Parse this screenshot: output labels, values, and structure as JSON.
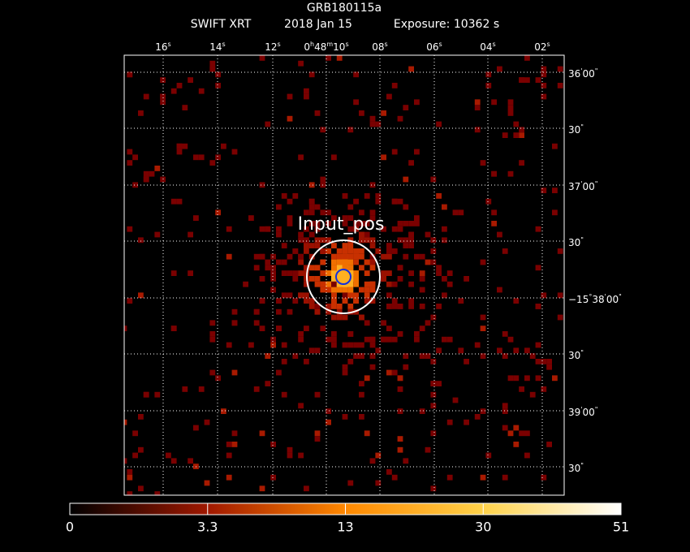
{
  "header": {
    "title": "GRB180115a",
    "instrument": "SWIFT XRT",
    "date": "2018 Jan 15",
    "exposure": "Exposure: 10362 s"
  },
  "ra_labels": [
    [
      "16",
      "s"
    ],
    [
      "14",
      "s"
    ],
    [
      "12",
      "s"
    ],
    [
      "0",
      "h",
      "48",
      "m",
      "10",
      "s"
    ],
    [
      "08",
      "s"
    ],
    [
      "06",
      "s"
    ],
    [
      "04",
      "s"
    ],
    [
      "02",
      "s"
    ]
  ],
  "dec_labels": [
    [
      "36",
      "'",
      "00",
      "\""
    ],
    [
      "30",
      "\""
    ],
    [
      "37",
      "'",
      "00",
      "\""
    ],
    [
      "30",
      "\""
    ],
    [
      "−15",
      "°",
      "38",
      "'",
      "00",
      "\""
    ],
    [
      "30",
      "\""
    ],
    [
      "39",
      "'",
      "00",
      "\""
    ],
    [
      "30",
      "\""
    ]
  ],
  "annotation": "Input_pos",
  "colorbar_ticks": [
    0,
    3.3,
    13,
    30,
    51
  ]
}
